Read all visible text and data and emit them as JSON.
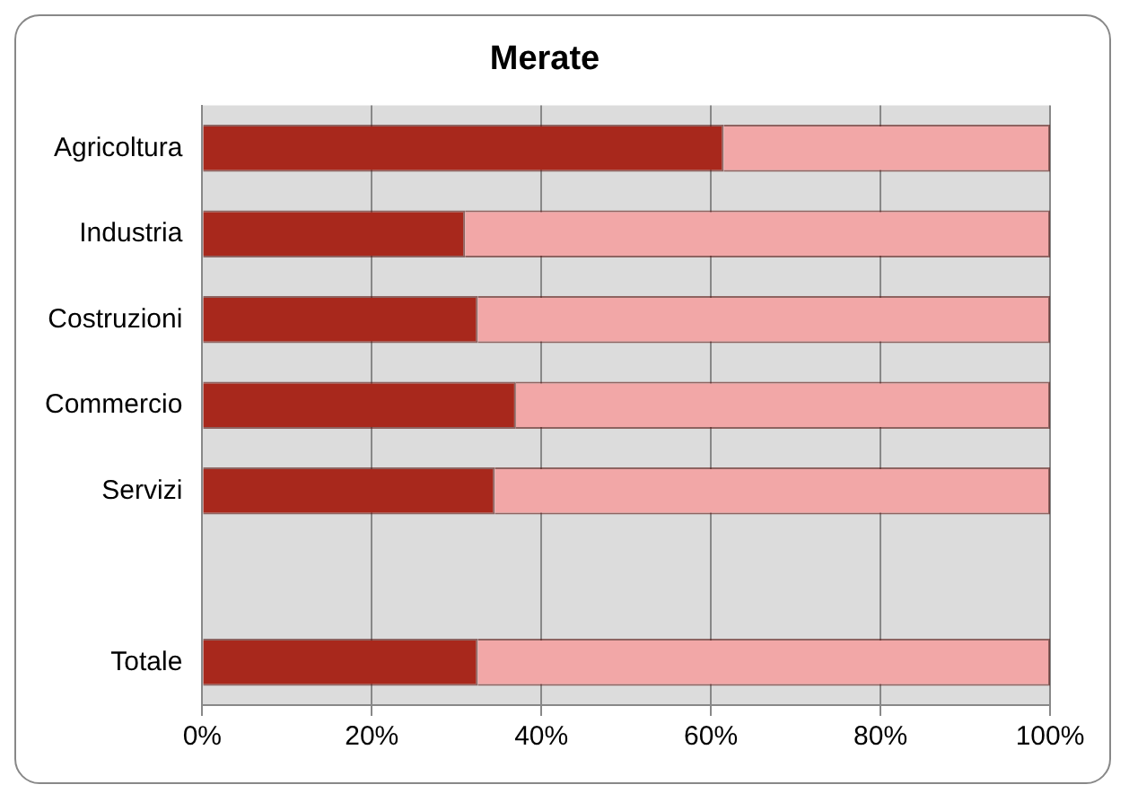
{
  "chart_data": {
    "type": "bar",
    "title": "Merate",
    "orientation": "horizontal",
    "stacked": true,
    "categories": [
      "Agricoltura",
      "Industria",
      "Costruzioni",
      "Commercio",
      "Servizi",
      null,
      "Totale"
    ],
    "series": [
      {
        "color": "#a8281c",
        "values": [
          61.5,
          31,
          32.5,
          37,
          34.5,
          null,
          32.5
        ]
      },
      {
        "color": "#f2a7a7",
        "values": [
          38.5,
          69,
          67.5,
          63,
          65.5,
          null,
          67.5
        ]
      }
    ],
    "xlim": [
      0,
      100
    ],
    "xticks": [
      {
        "value": 0,
        "label": "0%"
      },
      {
        "value": 20,
        "label": "20%"
      },
      {
        "value": 40,
        "label": "40%"
      },
      {
        "value": 60,
        "label": "60%"
      },
      {
        "value": 80,
        "label": "80%"
      },
      {
        "value": 100,
        "label": "100%"
      }
    ],
    "grid": "x",
    "legend": false
  }
}
